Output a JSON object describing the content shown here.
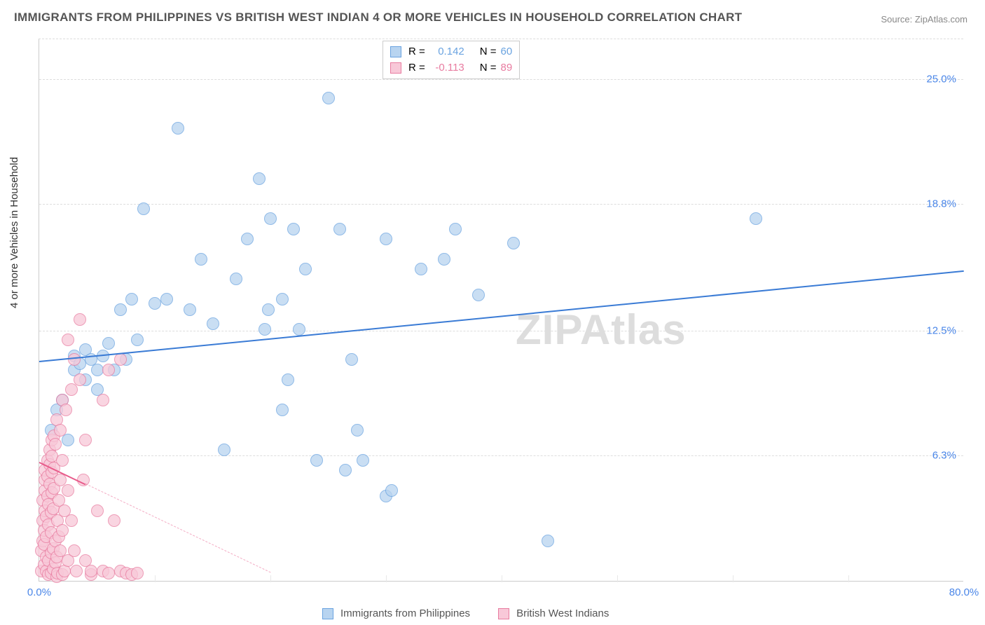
{
  "title": "IMMIGRANTS FROM PHILIPPINES VS BRITISH WEST INDIAN 4 OR MORE VEHICLES IN HOUSEHOLD CORRELATION CHART",
  "source": "Source: ZipAtlas.com",
  "watermark": "ZIPAtlas",
  "ylabel": "4 or more Vehicles in Household",
  "chart": {
    "type": "scatter",
    "background_color": "#ffffff",
    "grid_color": "#dddddd",
    "xlim": [
      0,
      80
    ],
    "ylim": [
      0,
      27
    ],
    "xticks": [
      {
        "pos": 0,
        "label": "0.0%",
        "color": "#4a86e8"
      },
      {
        "pos": 80,
        "label": "80.0%",
        "color": "#4a86e8"
      }
    ],
    "yticks": [
      {
        "pos": 6.3,
        "label": "6.3%",
        "color": "#4a86e8"
      },
      {
        "pos": 12.5,
        "label": "12.5%",
        "color": "#4a86e8"
      },
      {
        "pos": 18.8,
        "label": "18.8%",
        "color": "#4a86e8"
      },
      {
        "pos": 25.0,
        "label": "25.0%",
        "color": "#4a86e8"
      }
    ],
    "x_gridlines_minor": [
      10,
      20,
      30,
      40,
      50,
      60,
      70
    ],
    "series": [
      {
        "name": "Immigrants from Philippines",
        "fill": "#b8d4f0",
        "stroke": "#6aa3e0",
        "marker_size": 18,
        "r_value": "0.142",
        "n_value": "60",
        "regression": {
          "x1": 0,
          "y1": 11.0,
          "x2": 80,
          "y2": 15.5,
          "solid_to_x": 80,
          "color": "#3a7bd5"
        },
        "points": [
          [
            1,
            7.5
          ],
          [
            1.5,
            8.5
          ],
          [
            2,
            9
          ],
          [
            2.5,
            7
          ],
          [
            3,
            10.5
          ],
          [
            3,
            11.2
          ],
          [
            3.5,
            10.8
          ],
          [
            4,
            11.5
          ],
          [
            4,
            10
          ],
          [
            4.5,
            11
          ],
          [
            5,
            10.5
          ],
          [
            5,
            9.5
          ],
          [
            5.5,
            11.2
          ],
          [
            6,
            11.8
          ],
          [
            6.5,
            10.5
          ],
          [
            7,
            13.5
          ],
          [
            7.5,
            11
          ],
          [
            8,
            14
          ],
          [
            8.5,
            12
          ],
          [
            9,
            18.5
          ],
          [
            10,
            13.8
          ],
          [
            11,
            14
          ],
          [
            12,
            22.5
          ],
          [
            13,
            13.5
          ],
          [
            14,
            16
          ],
          [
            15,
            12.8
          ],
          [
            16,
            6.5
          ],
          [
            17,
            15
          ],
          [
            18,
            17
          ],
          [
            19,
            20
          ],
          [
            19.5,
            12.5
          ],
          [
            19.8,
            13.5
          ],
          [
            20,
            18
          ],
          [
            21,
            14
          ],
          [
            21,
            8.5
          ],
          [
            21.5,
            10
          ],
          [
            22,
            17.5
          ],
          [
            22.5,
            12.5
          ],
          [
            23,
            15.5
          ],
          [
            24,
            6
          ],
          [
            25,
            24
          ],
          [
            26,
            17.5
          ],
          [
            26.5,
            5.5
          ],
          [
            27,
            11
          ],
          [
            27.5,
            7.5
          ],
          [
            28,
            6
          ],
          [
            30,
            17
          ],
          [
            30,
            4.2
          ],
          [
            30.5,
            4.5
          ],
          [
            33,
            15.5
          ],
          [
            35,
            16
          ],
          [
            36,
            17.5
          ],
          [
            38,
            14.2
          ],
          [
            41,
            16.8
          ],
          [
            44,
            2
          ],
          [
            62,
            18
          ]
        ]
      },
      {
        "name": "British West Indians",
        "fill": "#f8c8d8",
        "stroke": "#e87ca0",
        "marker_size": 18,
        "r_value": "-0.113",
        "n_value": "89",
        "regression": {
          "x1": 0,
          "y1": 6.0,
          "x2": 20,
          "y2": 0.5,
          "solid_to_x": 4,
          "color": "#e85a8a"
        },
        "points": [
          [
            0.2,
            0.5
          ],
          [
            0.2,
            1.5
          ],
          [
            0.3,
            2
          ],
          [
            0.3,
            3
          ],
          [
            0.3,
            4
          ],
          [
            0.4,
            0.8
          ],
          [
            0.4,
            1.8
          ],
          [
            0.4,
            2.5
          ],
          [
            0.5,
            3.5
          ],
          [
            0.5,
            4.5
          ],
          [
            0.5,
            5
          ],
          [
            0.5,
            5.5
          ],
          [
            0.6,
            0.5
          ],
          [
            0.6,
            1.2
          ],
          [
            0.6,
            2.2
          ],
          [
            0.6,
            3.2
          ],
          [
            0.7,
            4.2
          ],
          [
            0.7,
            5.2
          ],
          [
            0.7,
            6
          ],
          [
            0.8,
            0.3
          ],
          [
            0.8,
            1
          ],
          [
            0.8,
            2.8
          ],
          [
            0.8,
            3.8
          ],
          [
            0.9,
            4.8
          ],
          [
            0.9,
            5.8
          ],
          [
            0.9,
            6.5
          ],
          [
            1,
            0.4
          ],
          [
            1,
            1.4
          ],
          [
            1,
            2.4
          ],
          [
            1,
            3.4
          ],
          [
            1.1,
            4.4
          ],
          [
            1.1,
            5.4
          ],
          [
            1.1,
            6.2
          ],
          [
            1.1,
            7
          ],
          [
            1.2,
            0.6
          ],
          [
            1.2,
            1.6
          ],
          [
            1.2,
            3.6
          ],
          [
            1.3,
            4.6
          ],
          [
            1.3,
            5.6
          ],
          [
            1.3,
            7.2
          ],
          [
            1.4,
            0.9
          ],
          [
            1.4,
            2
          ],
          [
            1.4,
            6.8
          ],
          [
            1.5,
            0.2
          ],
          [
            1.5,
            1.2
          ],
          [
            1.5,
            8
          ],
          [
            1.6,
            0.4
          ],
          [
            1.6,
            3
          ],
          [
            1.7,
            2.2
          ],
          [
            1.7,
            4
          ],
          [
            1.8,
            1.5
          ],
          [
            1.8,
            5
          ],
          [
            1.8,
            7.5
          ],
          [
            2,
            0.3
          ],
          [
            2,
            2.5
          ],
          [
            2,
            6
          ],
          [
            2,
            9
          ],
          [
            2.2,
            0.5
          ],
          [
            2.2,
            3.5
          ],
          [
            2.3,
            8.5
          ],
          [
            2.5,
            1
          ],
          [
            2.5,
            4.5
          ],
          [
            2.5,
            12
          ],
          [
            2.8,
            3
          ],
          [
            2.8,
            9.5
          ],
          [
            3,
            1.5
          ],
          [
            3,
            11
          ],
          [
            3.2,
            0.5
          ],
          [
            3.5,
            10
          ],
          [
            3.5,
            13
          ],
          [
            3.8,
            5
          ],
          [
            4,
            1
          ],
          [
            4,
            7
          ],
          [
            4.5,
            0.3
          ],
          [
            4.5,
            0.5
          ],
          [
            5,
            3.5
          ],
          [
            5.5,
            0.5
          ],
          [
            5.5,
            9
          ],
          [
            6,
            0.4
          ],
          [
            6,
            10.5
          ],
          [
            6.5,
            3
          ],
          [
            7,
            0.5
          ],
          [
            7,
            11
          ],
          [
            7.5,
            0.4
          ],
          [
            8,
            0.3
          ],
          [
            8.5,
            0.4
          ]
        ]
      }
    ]
  },
  "stats_labels": {
    "r": "R =",
    "n": "N ="
  },
  "legend": {
    "series1": "Immigrants from Philippines",
    "series2": "British West Indians"
  },
  "title_fontsize": 17,
  "label_fontsize": 15,
  "tick_fontsize": 15
}
